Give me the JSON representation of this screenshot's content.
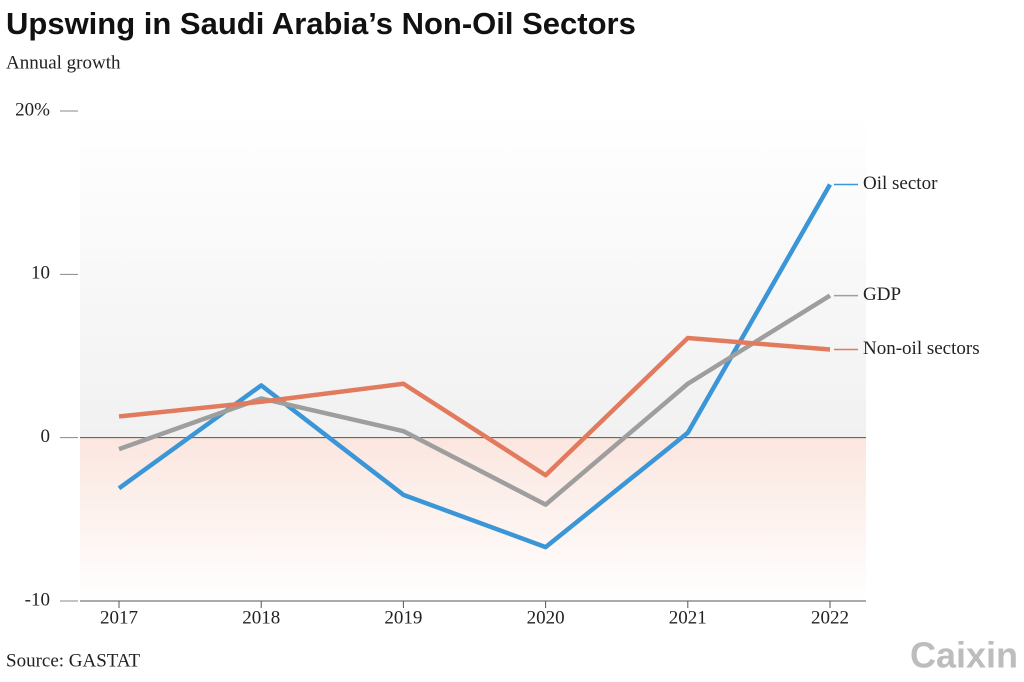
{
  "chart_data": {
    "type": "line",
    "title": "Upswing in Saudi Arabia’s Non-Oil Sectors",
    "subtitle": "Annual growth",
    "source": "Source: GASTAT",
    "brand": "Caixin",
    "categories": [
      "2017",
      "2018",
      "2019",
      "2020",
      "2021",
      "2022"
    ],
    "series": [
      {
        "name": "Oil sector",
        "color": "#3a96d6",
        "values": [
          -3.1,
          3.2,
          -3.5,
          -6.7,
          0.3,
          15.5
        ]
      },
      {
        "name": "GDP",
        "color": "#9e9e9e",
        "values": [
          -0.7,
          2.4,
          0.4,
          -4.1,
          3.3,
          8.7
        ]
      },
      {
        "name": "Non-oil sectors",
        "color": "#e27b5e",
        "values": [
          1.3,
          2.2,
          3.3,
          -2.3,
          6.1,
          5.4
        ]
      }
    ],
    "ylim": [
      -10,
      20
    ],
    "yticks": [
      {
        "value": 20,
        "label": "20%"
      },
      10,
      0,
      -10
    ]
  }
}
